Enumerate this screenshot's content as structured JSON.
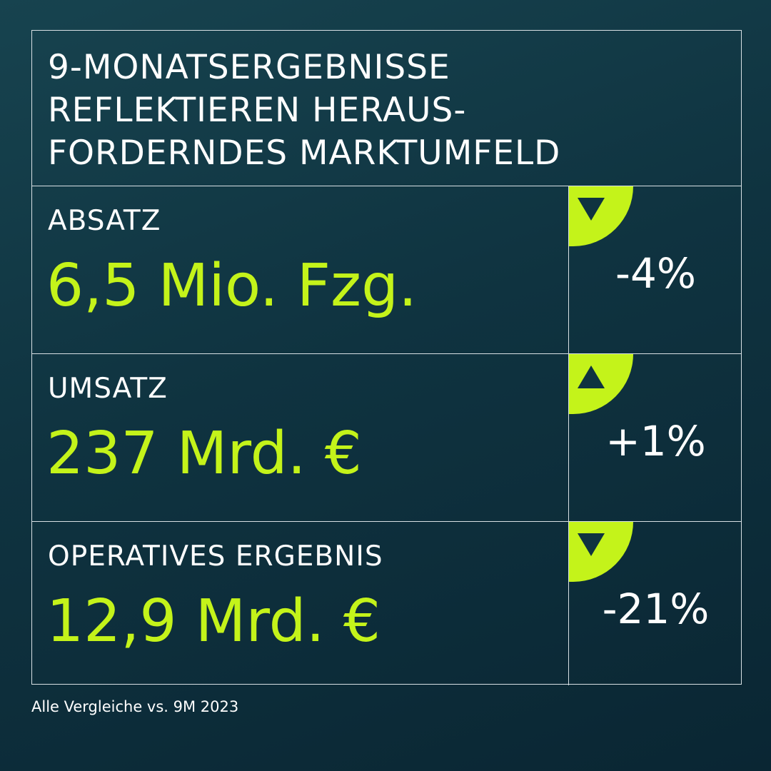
{
  "title": {
    "lines": [
      "9-MONATSERGEBNISSE",
      "REFLEKTIEREN HERAUS-",
      "FORDERNDES MARKTUMFELD"
    ]
  },
  "metrics": [
    {
      "label": "ABSATZ",
      "value": "6,5 Mio. Fzg.",
      "change": "-4%",
      "trend": "down",
      "trend_icon": "triangle-down-icon"
    },
    {
      "label": "UMSATZ",
      "value": "237 Mrd. €",
      "change": "+1%",
      "trend": "up",
      "trend_icon": "triangle-up-icon"
    },
    {
      "label": "OPERATIVES ERGEBNIS",
      "value": "12,9 Mrd. €",
      "change": "-21%",
      "trend": "down",
      "trend_icon": "triangle-down-icon"
    }
  ],
  "footnote": "Alle Vergleiche vs. 9M 2023",
  "colors": {
    "accent": "#c4f31a",
    "background": "#0f3340",
    "text": "#ffffff",
    "border": "#d8e0e4"
  }
}
